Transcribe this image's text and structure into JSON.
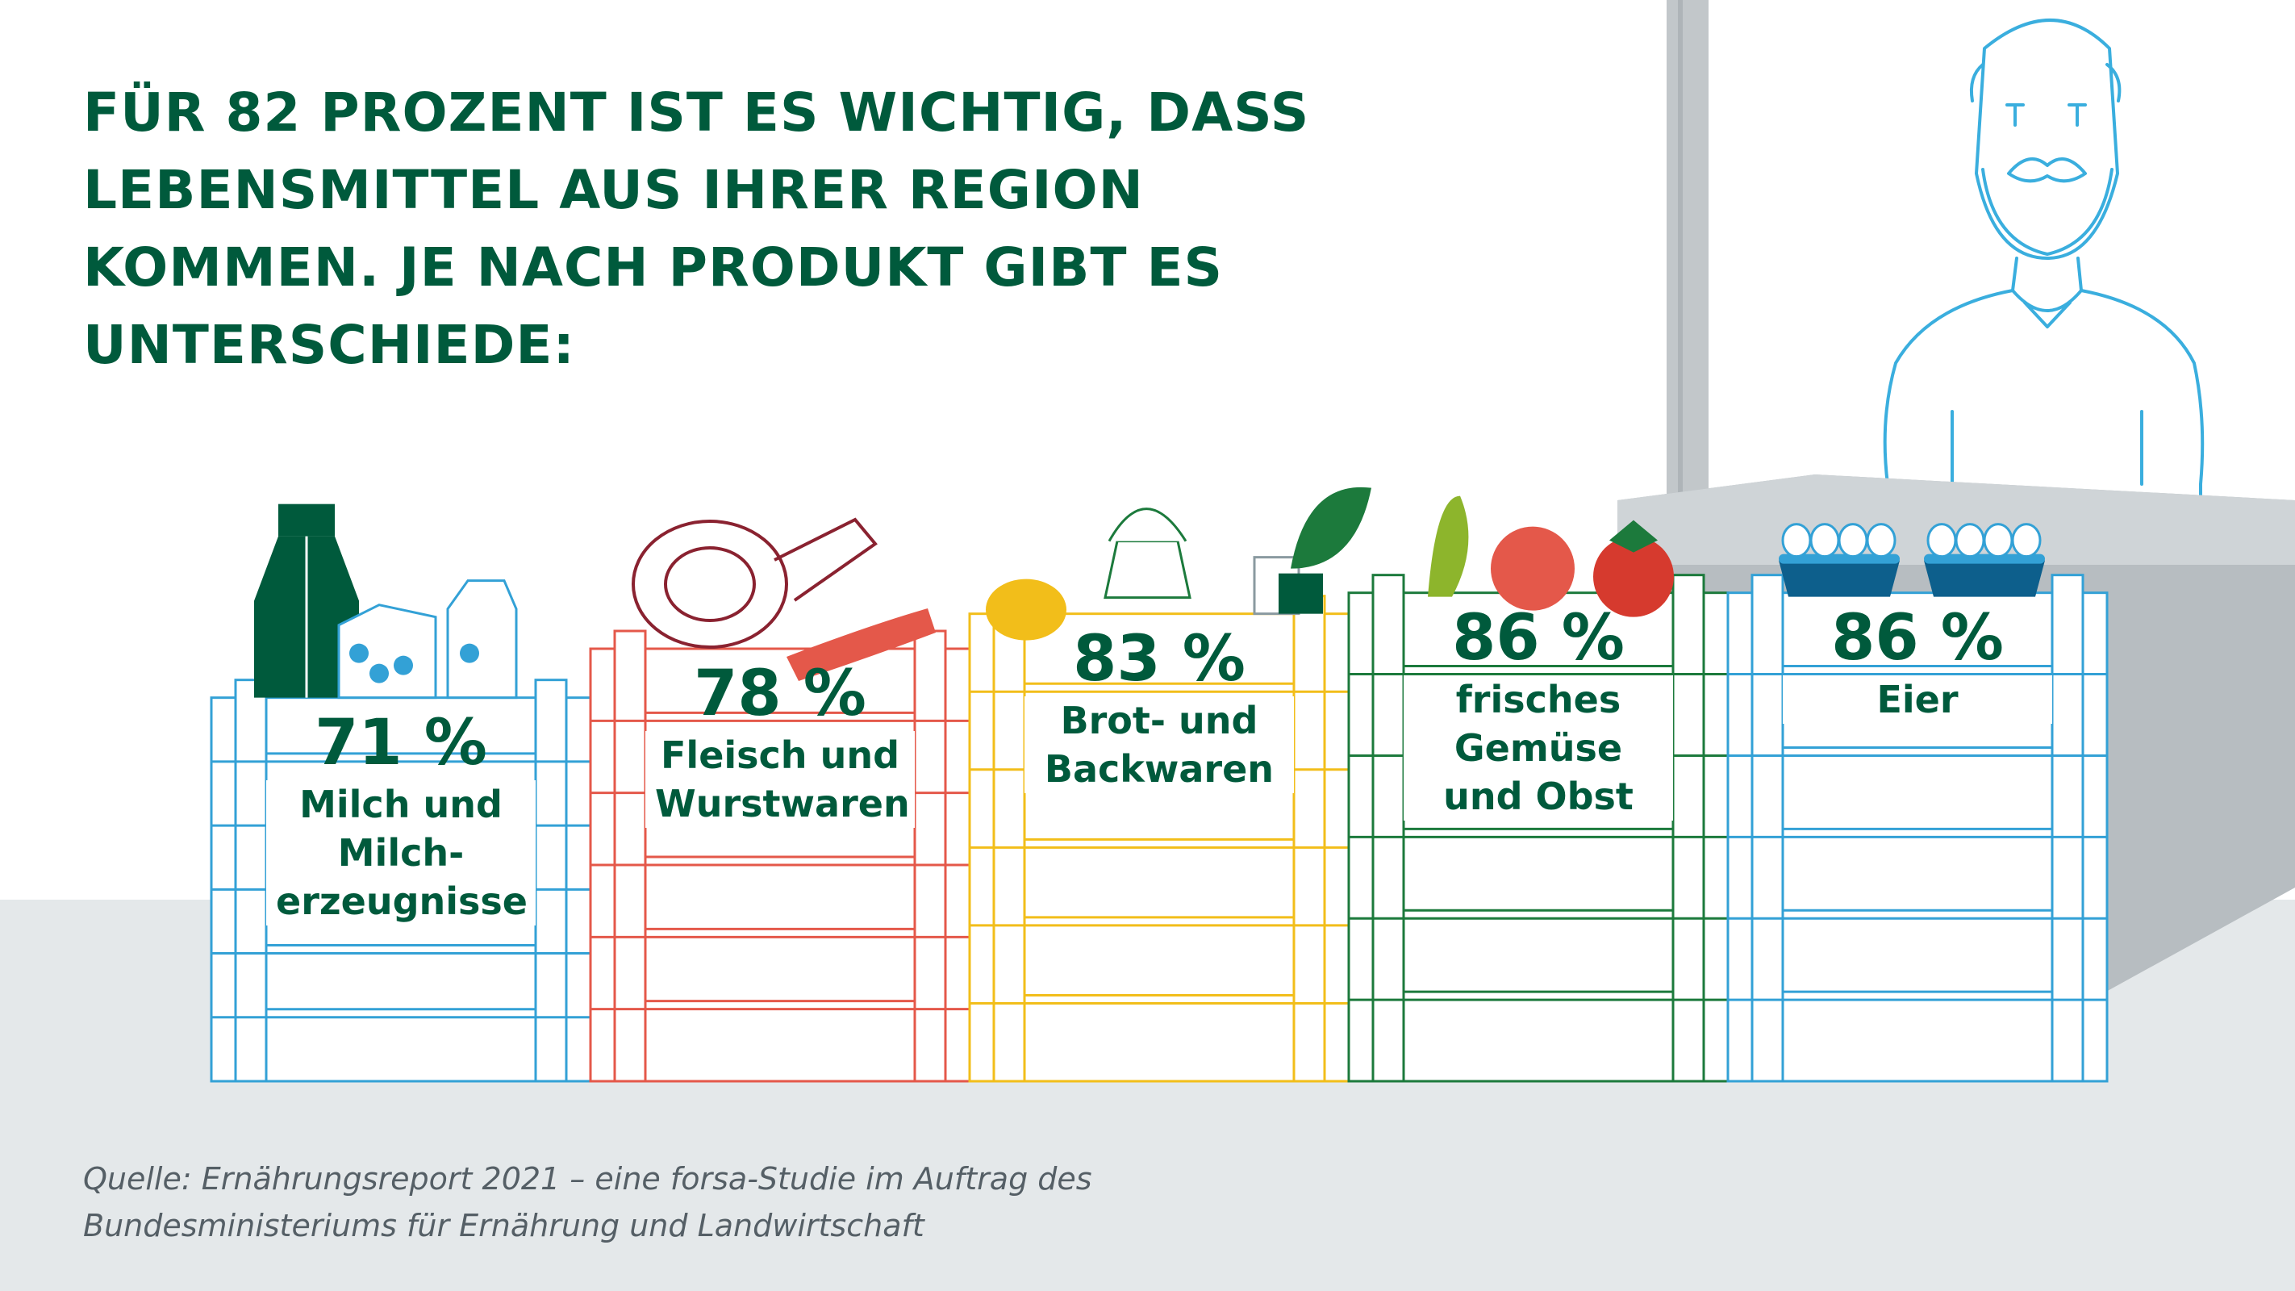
{
  "headline": "FÜR 82 PROZENT IST ES WICHTIG, DASS LEBENSMITTEL AUS IHRER REGION KOMMEN. JE NACH PRODUKT GIBT ES UNTERSCHIEDE:",
  "source": "Quelle: Ernährungsreport 2021 – eine forsa-Studie im Auftrag des Bundesministeriums für Ernährung und Landwirtschaft",
  "chart_data": {
    "type": "bar",
    "title": "FÜR 82 PROZENT IST ES WICHTIG, DASS LEBENSMITTEL AUS IHRER REGION KOMMEN. JE NACH PRODUKT GIBT ES UNTERSCHIEDE:",
    "unit": "%",
    "categories": [
      "Milch und Milch-\nerzeugnisse",
      "Fleisch und\nWurstwaren",
      "Brot- und\nBackwaren",
      "frisches\nGemüse\nund Obst",
      "Eier"
    ],
    "values": [
      71,
      78,
      83,
      86,
      86
    ],
    "value_labels": [
      "71 %",
      "78 %",
      "83 %",
      "86 %",
      "86 %"
    ],
    "colors": [
      "#33a1d6",
      "#e4584a",
      "#f2be1a",
      "#1c7a3c",
      "#33a1d6"
    ],
    "source": "Quelle: Ernährungsreport 2021 – eine forsa-Studie im Auftrag des Bundesministeriums für Ernährung und Landwirtschaft"
  },
  "icons": [
    "milk-carton-icon",
    "cheese-icon",
    "ham-icon",
    "sausage-icon",
    "bread-icon",
    "cupcake-icon",
    "vegetables-icon",
    "fruit-icon",
    "egg-carton-icon",
    "farmer-illustration"
  ]
}
